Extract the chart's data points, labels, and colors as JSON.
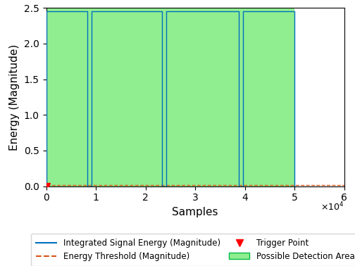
{
  "xlabel": "Samples",
  "ylabel": "Energy (Magnitude)",
  "xlim": [
    0,
    60000
  ],
  "ylim": [
    0,
    2.5
  ],
  "yticks": [
    0,
    0.5,
    1.0,
    1.5,
    2.0,
    2.5
  ],
  "xticks": [
    0,
    10000,
    20000,
    30000,
    40000,
    50000,
    60000
  ],
  "xtick_labels": [
    "0",
    "1",
    "2",
    "3",
    "4",
    "5",
    "6"
  ],
  "signal_color": "#0070C0",
  "threshold_color": "#D95319",
  "threshold_value": 0.02,
  "trigger_x": 0,
  "trigger_y": 0,
  "trigger_color": "red",
  "patch_color": "#90EE90",
  "patch_alpha": 1.0,
  "patch_edge_color": "#00BB44",
  "peak": 2.45,
  "signal_x": [
    0,
    0,
    8300,
    8300,
    9100,
    9100,
    23300,
    23300,
    24100,
    24100,
    38800,
    38800,
    39600,
    39600,
    50000,
    50000
  ],
  "signal_y": [
    0,
    2.45,
    2.45,
    0,
    0,
    2.45,
    2.45,
    0,
    0,
    2.45,
    2.45,
    0,
    0,
    2.45,
    2.45,
    0
  ],
  "detection_patches": [
    [
      0,
      50000
    ]
  ],
  "legend_entries": [
    "Integrated Signal Energy (Magnitude)",
    "Energy Threshold (Magnitude)",
    "Trigger Point",
    "Possible Detection Area"
  ],
  "fig_width": 5.04,
  "fig_height": 3.78,
  "dpi": 100
}
